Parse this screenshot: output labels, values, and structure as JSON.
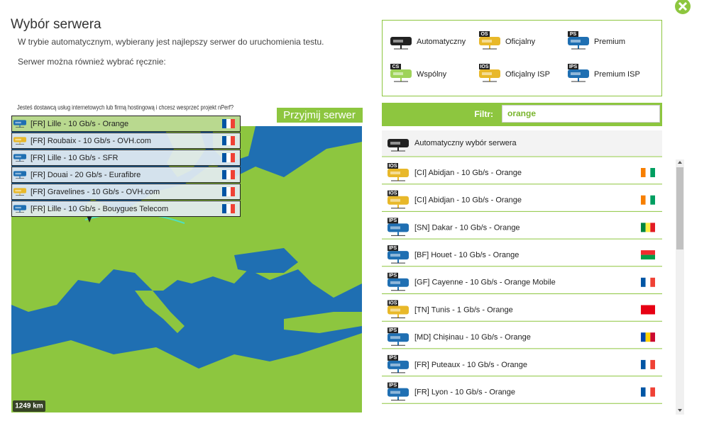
{
  "header": {
    "title": "Wybór serwera",
    "intro": "W trybie automatycznym, wybierany jest najlepszy serwer do uruchomienia testu.",
    "manual": "Serwer można również wybrać ręcznie:"
  },
  "map": {
    "prompt": "Jesteś dostawcą usług internetowych lub firmą hostingową i chcesz wesprzeć projekt nPerf?",
    "button": "Przyjmij serwer",
    "scale": "1249 km",
    "servers": [
      {
        "label": "[FR] Lille - 10 Gb/s - Orange",
        "color": "#1f6fb2",
        "flag": [
          "#0055a4",
          "#ffffff",
          "#ef4135"
        ]
      },
      {
        "label": "[FR] Roubaix - 10 Gb/s - OVH.com",
        "color": "#e8b82a",
        "flag": [
          "#0055a4",
          "#ffffff",
          "#ef4135"
        ]
      },
      {
        "label": "[FR] Lille - 10 Gb/s - SFR",
        "color": "#1f6fb2",
        "flag": [
          "#0055a4",
          "#ffffff",
          "#ef4135"
        ]
      },
      {
        "label": "[FR] Douai - 20 Gb/s - Eurafibre",
        "color": "#1f6fb2",
        "flag": [
          "#0055a4",
          "#ffffff",
          "#ef4135"
        ]
      },
      {
        "label": "[FR] Gravelines - 10 Gb/s - OVH.com",
        "color": "#e8b82a",
        "flag": [
          "#0055a4",
          "#ffffff",
          "#ef4135"
        ]
      },
      {
        "label": "[FR] Lille - 10 Gb/s - Bouygues Telecom",
        "color": "#1f6fb2",
        "flag": [
          "#0055a4",
          "#ffffff",
          "#ef4135"
        ]
      }
    ]
  },
  "legend": [
    {
      "label": "Automatyczny",
      "color": "#222222"
    },
    {
      "label": "Oficjalny",
      "badge": "OS",
      "color": "#e8b82a"
    },
    {
      "label": "Premium",
      "badge": "PS",
      "color": "#1f6fb2"
    },
    {
      "label": "Wspólny",
      "badge": "CS",
      "color": "#9fd35a"
    },
    {
      "label": "Oficjalny ISP",
      "badge": "IOS",
      "color": "#e8b82a"
    },
    {
      "label": "Premium ISP",
      "badge": "IPS",
      "color": "#1f6fb2"
    }
  ],
  "filter": {
    "label": "Filtr:",
    "value": "orange"
  },
  "list": {
    "auto": "Automatyczny wybór serwera",
    "servers": [
      {
        "badge": "IOS",
        "color": "#e8b82a",
        "label": "[CI] Abidjan - 10 Gb/s - Orange",
        "flag": [
          "#f77f00",
          "#ffffff",
          "#009e60"
        ]
      },
      {
        "badge": "IOS",
        "color": "#e8b82a",
        "label": "[CI] Abidjan - 10 Gb/s - Orange",
        "flag": [
          "#f77f00",
          "#ffffff",
          "#009e60"
        ]
      },
      {
        "badge": "IPS",
        "color": "#1f6fb2",
        "label": "[SN] Dakar - 10 Gb/s - Orange",
        "flag": [
          "#00853f",
          "#fdef42",
          "#e31b23"
        ]
      },
      {
        "badge": "IPS",
        "color": "#1f6fb2",
        "label": "[BF] Houet - 10 Gb/s - Orange",
        "flag": [
          "#ef2b2d",
          "#009e49"
        ]
      },
      {
        "badge": "IPS",
        "color": "#1f6fb2",
        "label": "[GF] Cayenne - 10 Gb/s - Orange Mobile",
        "flag": [
          "#0055a4",
          "#ffffff",
          "#ef4135"
        ]
      },
      {
        "badge": "IOS",
        "color": "#e8b82a",
        "label": "[TN] Tunis - 1 Gb/s - Orange",
        "flag": [
          "#e70013"
        ]
      },
      {
        "badge": "IPS",
        "color": "#1f6fb2",
        "label": "[MD] Chișinau - 10 Gb/s - Orange",
        "flag": [
          "#0046ae",
          "#ffd200",
          "#cc092f"
        ]
      },
      {
        "badge": "IPS",
        "color": "#1f6fb2",
        "label": "[FR] Puteaux - 10 Gb/s - Orange",
        "flag": [
          "#0055a4",
          "#ffffff",
          "#ef4135"
        ]
      },
      {
        "badge": "IPS",
        "color": "#1f6fb2",
        "label": "[FR] Lyon - 10 Gb/s - Orange",
        "flag": [
          "#0055a4",
          "#ffffff",
          "#ef4135"
        ]
      }
    ]
  }
}
